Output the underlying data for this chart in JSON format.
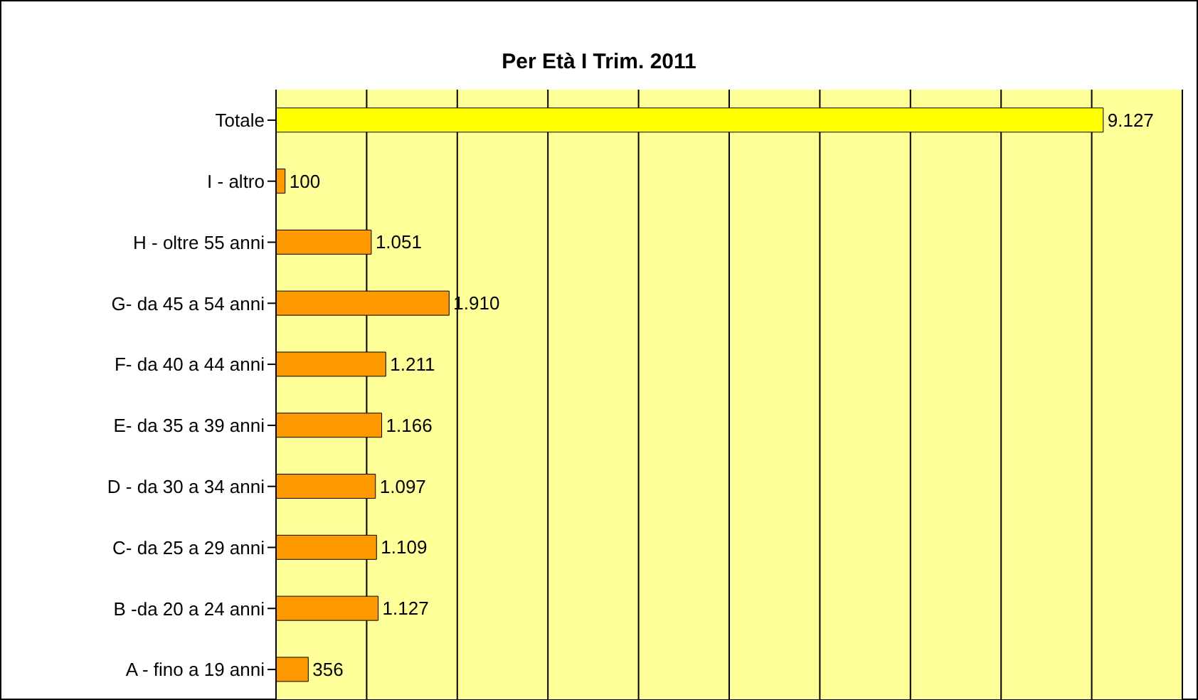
{
  "chart_data": {
    "type": "bar",
    "orientation": "horizontal",
    "title": "Per Età I Trim. 2011",
    "categories": [
      "Totale",
      "I - altro",
      "H - oltre 55 anni",
      "G- da 45 a 54 anni",
      "F- da 40 a 44 anni",
      "E- da 35 a 39 anni",
      "D - da 30 a 34 anni",
      "C- da 25 a 29 anni",
      "B -da 20 a 24 anni",
      "A - fino a 19 anni"
    ],
    "values": [
      9127,
      100,
      1051,
      1910,
      1211,
      1166,
      1097,
      1109,
      1127,
      356
    ],
    "value_labels": [
      "9.127",
      "100",
      "1.051",
      "1.910",
      "1.211",
      "1.166",
      "1.097",
      "1.109",
      "1.127",
      "356"
    ],
    "colors": [
      "#ffff00",
      "#ff9900",
      "#ff9900",
      "#ff9900",
      "#ff9900",
      "#ff9900",
      "#ff9900",
      "#ff9900",
      "#ff9900",
      "#ff9900"
    ],
    "xlim": [
      0,
      10000
    ],
    "xticks": [
      {
        "value": 0,
        "label": null
      },
      {
        "value": 1000,
        "label": null
      },
      {
        "value": 2000,
        "label": null
      },
      {
        "value": 3000,
        "label": null
      },
      {
        "value": 4000,
        "label": null
      },
      {
        "value": 5000,
        "label": null
      },
      {
        "value": 6000,
        "label": null
      },
      {
        "value": 7000,
        "label": null
      },
      {
        "value": 8000,
        "label": null
      },
      {
        "value": 9000,
        "label": null
      },
      {
        "value": 10000,
        "label": null
      }
    ],
    "grid": "x",
    "tick_labels": "y"
  }
}
